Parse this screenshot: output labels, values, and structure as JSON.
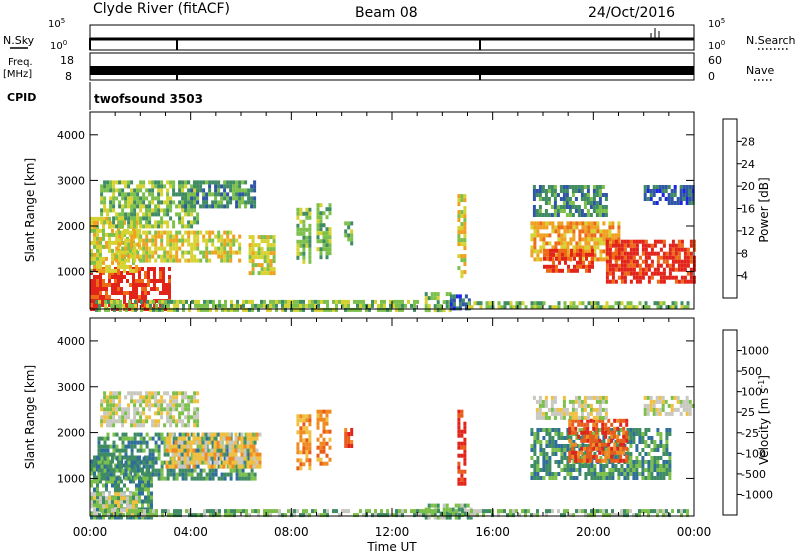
{
  "header": {
    "station": "Clyde River (fitACF)",
    "beam": "Beam 08",
    "date": "24/Oct/2016"
  },
  "top_panels": {
    "nsky_label": "N.Sky",
    "nsearch_label": "N.Search",
    "nsky_ticks": [
      "10^5",
      "10^0"
    ],
    "nsearch_ticks": [
      "10^5",
      "10^0"
    ],
    "freq_label": "Freq.",
    "freq_unit": "[MHz]",
    "freq_ticks": [
      "18",
      "8"
    ],
    "nave_label": "Nave",
    "nave_ticks": [
      "60",
      "0"
    ],
    "cpid_label": "CPID",
    "cpid_value": "twofsound 3503"
  },
  "chart_data": [
    {
      "type": "heatmap",
      "name": "power",
      "ylabel": "Slant Range [km]",
      "y_ticks": [
        1000,
        2000,
        3000,
        4000
      ],
      "ylim": [
        180,
        4500
      ],
      "x_ticks": [
        "00:00",
        "04:00",
        "08:00",
        "12:00",
        "16:00",
        "20:00",
        "00:00"
      ],
      "xlim_hours": [
        0,
        24
      ],
      "colorbar": {
        "label": "Power [dB]",
        "ticks": [
          "4",
          "8",
          "12",
          "16",
          "20",
          "24",
          "28"
        ],
        "colors": [
          "#1c25e3",
          "#2f55a5",
          "#3f8b63",
          "#7cc04b",
          "#d6d231",
          "#f0a020",
          "#ee6a18",
          "#e2231a"
        ]
      },
      "regions": [
        {
          "t0": 0.0,
          "t1": 3.2,
          "r0": 200,
          "r1": 1100,
          "level": 7
        },
        {
          "t0": 0.0,
          "t1": 2.0,
          "r0": 1000,
          "r1": 2200,
          "level": 4
        },
        {
          "t0": 0.4,
          "t1": 4.3,
          "r0": 2000,
          "r1": 3000,
          "level": 3
        },
        {
          "t0": 1.0,
          "t1": 6.0,
          "r0": 1200,
          "r1": 1900,
          "level": 4
        },
        {
          "t0": 3.5,
          "t1": 6.5,
          "r0": 2400,
          "r1": 3000,
          "level": 2
        },
        {
          "t0": 6.3,
          "t1": 7.3,
          "r0": 1000,
          "r1": 1800,
          "level": 4
        },
        {
          "t0": 8.2,
          "t1": 8.7,
          "r0": 1200,
          "r1": 2400,
          "level": 3
        },
        {
          "t0": 9.0,
          "t1": 9.5,
          "r0": 1300,
          "r1": 2500,
          "level": 3
        },
        {
          "t0": 10.1,
          "t1": 10.4,
          "r0": 1600,
          "r1": 2100,
          "level": 3
        },
        {
          "t0": 13.3,
          "t1": 14.3,
          "r0": 180,
          "r1": 550,
          "level": 3
        },
        {
          "t0": 14.3,
          "t1": 15.1,
          "r0": 180,
          "r1": 500,
          "level": 1
        },
        {
          "t0": 14.6,
          "t1": 14.9,
          "r0": 900,
          "r1": 2700,
          "level": 4
        },
        {
          "t0": 17.5,
          "t1": 21.0,
          "r0": 1300,
          "r1": 2100,
          "level": 5
        },
        {
          "t0": 17.6,
          "t1": 20.5,
          "r0": 2200,
          "r1": 2900,
          "level": 2
        },
        {
          "t0": 18.0,
          "t1": 20.0,
          "r0": 1000,
          "r1": 1500,
          "level": 7
        },
        {
          "t0": 20.5,
          "t1": 24.0,
          "r0": 800,
          "r1": 1700,
          "level": 7
        },
        {
          "t0": 22.0,
          "t1": 24.0,
          "r0": 2500,
          "r1": 2900,
          "level": 1
        },
        {
          "t0": 0.2,
          "t1": 13.0,
          "r0": 180,
          "r1": 380,
          "level": 3
        },
        {
          "t0": 15.0,
          "t1": 23.8,
          "r0": 180,
          "r1": 350,
          "level": 3
        }
      ]
    },
    {
      "type": "heatmap",
      "name": "velocity",
      "ylabel": "Slant Range [km]",
      "y_ticks": [
        1000,
        2000,
        3000,
        4000
      ],
      "ylim": [
        180,
        4500
      ],
      "x_ticks": [
        "00:00",
        "04:00",
        "08:00",
        "12:00",
        "16:00",
        "20:00",
        "00:00"
      ],
      "xlim_hours": [
        0,
        24
      ],
      "xlabel": "Time UT",
      "colorbar": {
        "label": "Velocity [m s^-1]",
        "ticks": [
          "1000",
          "500",
          "100",
          "25",
          "-25",
          "-100",
          "-500",
          "-1000"
        ],
        "colors": [
          "#1c3fb0",
          "#2f6e9a",
          "#3f8b63",
          "#7cc04b",
          "#c8c8c0",
          "#f0c040",
          "#f08a20",
          "#ea5a18",
          "#e2231a"
        ]
      },
      "regions": [
        {
          "t0": 0.0,
          "t1": 2.5,
          "r0": 180,
          "r1": 1500,
          "level": 2
        },
        {
          "t0": 0.0,
          "t1": 1.8,
          "r0": 180,
          "r1": 700,
          "level": 4
        },
        {
          "t0": 0.3,
          "t1": 6.5,
          "r0": 1000,
          "r1": 2000,
          "level": 2
        },
        {
          "t0": 0.4,
          "t1": 4.3,
          "r0": 2200,
          "r1": 2900,
          "level": 4
        },
        {
          "t0": 3.0,
          "t1": 6.8,
          "r0": 1300,
          "r1": 2000,
          "level": 5
        },
        {
          "t0": 8.2,
          "t1": 8.7,
          "r0": 1200,
          "r1": 2400,
          "level": 6
        },
        {
          "t0": 9.0,
          "t1": 9.5,
          "r0": 1300,
          "r1": 2500,
          "level": 6
        },
        {
          "t0": 10.1,
          "t1": 10.4,
          "r0": 1600,
          "r1": 2100,
          "level": 7
        },
        {
          "t0": 13.3,
          "t1": 15.1,
          "r0": 180,
          "r1": 450,
          "level": 3
        },
        {
          "t0": 14.6,
          "t1": 14.9,
          "r0": 900,
          "r1": 2500,
          "level": 8
        },
        {
          "t0": 17.5,
          "t1": 23.0,
          "r0": 1000,
          "r1": 2100,
          "level": 2
        },
        {
          "t0": 19.0,
          "t1": 21.3,
          "r0": 1400,
          "r1": 2300,
          "level": 7
        },
        {
          "t0": 17.6,
          "t1": 20.5,
          "r0": 2300,
          "r1": 2800,
          "level": 4
        },
        {
          "t0": 22.0,
          "t1": 24.0,
          "r0": 2400,
          "r1": 2800,
          "level": 4
        },
        {
          "t0": 0.2,
          "t1": 23.8,
          "r0": 180,
          "r1": 330,
          "level": 3
        }
      ]
    }
  ]
}
